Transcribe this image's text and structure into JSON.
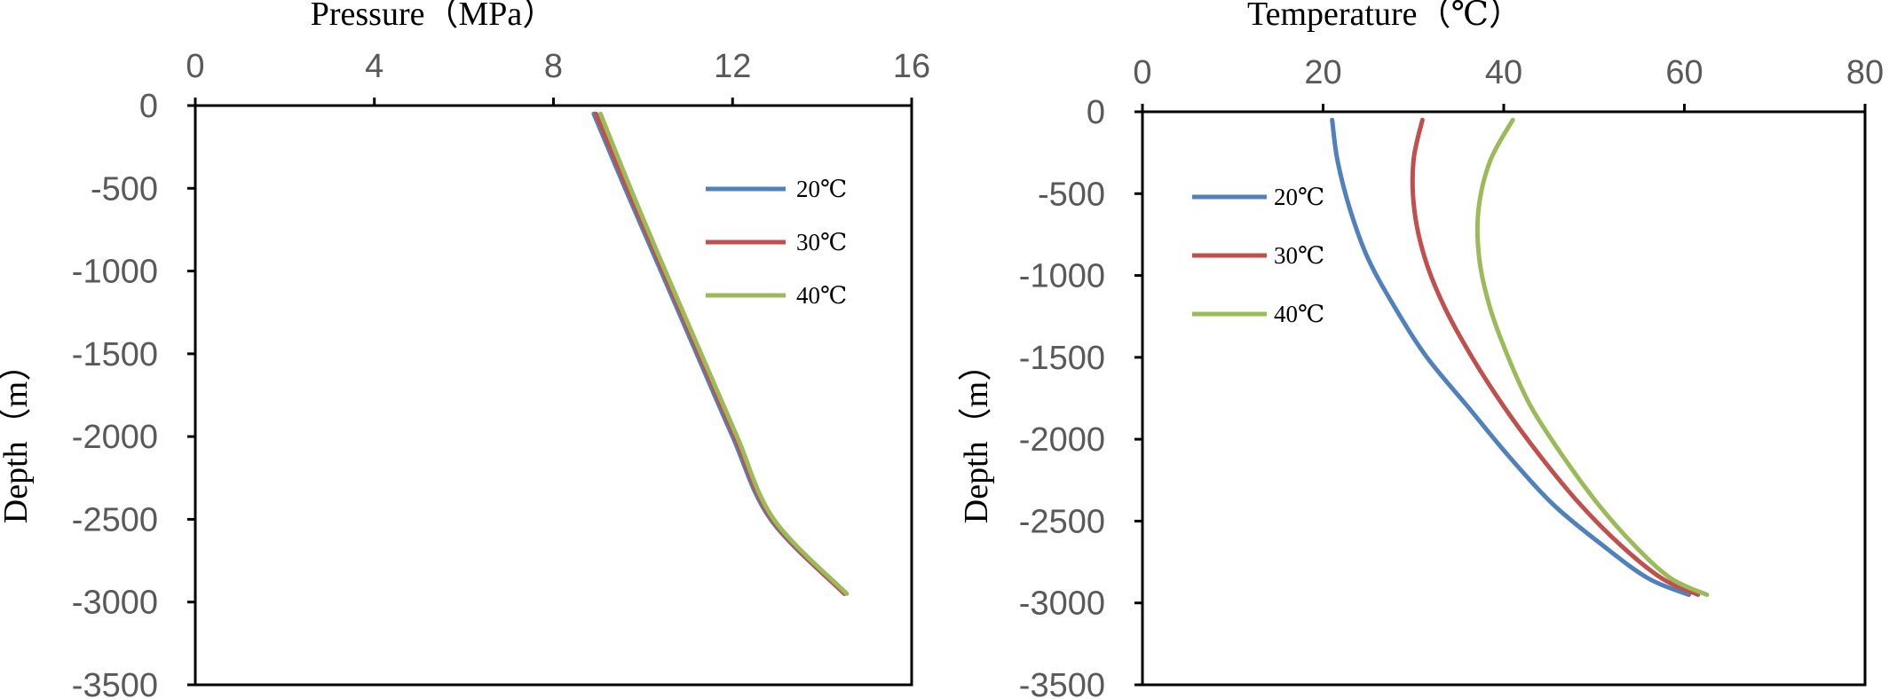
{
  "chart_data": [
    {
      "type": "line",
      "title": "",
      "xlabel": "Pressure（MPa）",
      "ylabel": "Depth（m）",
      "xlim": [
        0,
        16
      ],
      "ylim": [
        -3500,
        0
      ],
      "xticks": [
        "0",
        "4",
        "8",
        "12",
        "16"
      ],
      "yticks": [
        "0",
        "-500",
        "-1000",
        "-1500",
        "-2000",
        "-2500",
        "-3000",
        "-3500"
      ],
      "grid": false,
      "legend_position": "top-right",
      "series": [
        {
          "name": "20℃",
          "color": "#4f81bd",
          "points": [
            [
              8.9,
              -50
            ],
            [
              9.6,
              -500
            ],
            [
              10.4,
              -1000
            ],
            [
              11.2,
              -1500
            ],
            [
              12.0,
              -2000
            ],
            [
              12.85,
              -2500
            ],
            [
              14.5,
              -2950
            ]
          ]
        },
        {
          "name": "30℃",
          "color": "#c0504d",
          "points": [
            [
              8.95,
              -50
            ],
            [
              9.65,
              -500
            ],
            [
              10.45,
              -1000
            ],
            [
              11.25,
              -1500
            ],
            [
              12.05,
              -2000
            ],
            [
              12.88,
              -2500
            ],
            [
              14.5,
              -2950
            ]
          ]
        },
        {
          "name": "40℃",
          "color": "#9bbb59",
          "points": [
            [
              9.05,
              -50
            ],
            [
              9.72,
              -500
            ],
            [
              10.5,
              -1000
            ],
            [
              11.3,
              -1500
            ],
            [
              12.1,
              -2000
            ],
            [
              12.92,
              -2500
            ],
            [
              14.55,
              -2950
            ]
          ]
        }
      ]
    },
    {
      "type": "line",
      "title": "",
      "xlabel": "Temperature（℃）",
      "ylabel": "Depth（m）",
      "xlim": [
        0,
        80
      ],
      "ylim": [
        -3500,
        0
      ],
      "xticks": [
        "0",
        "20",
        "40",
        "60",
        "80"
      ],
      "yticks": [
        "0",
        "-500",
        "-1000",
        "-1500",
        "-2000",
        "-2500",
        "-3000",
        "-3500"
      ],
      "grid": false,
      "legend_position": "top-left",
      "series": [
        {
          "name": "20℃",
          "color": "#4f81bd",
          "points": [
            [
              21.0,
              -50
            ],
            [
              21.6,
              -300
            ],
            [
              23.0,
              -600
            ],
            [
              25.0,
              -900
            ],
            [
              28.0,
              -1200
            ],
            [
              31.5,
              -1500
            ],
            [
              36.0,
              -1800
            ],
            [
              40.5,
              -2100
            ],
            [
              45.5,
              -2400
            ],
            [
              51.0,
              -2650
            ],
            [
              56.0,
              -2850
            ],
            [
              60.5,
              -2950
            ]
          ]
        },
        {
          "name": "30℃",
          "color": "#c0504d",
          "points": [
            [
              31.0,
              -50
            ],
            [
              30.0,
              -300
            ],
            [
              30.1,
              -600
            ],
            [
              31.3,
              -900
            ],
            [
              33.5,
              -1200
            ],
            [
              36.5,
              -1500
            ],
            [
              40.0,
              -1800
            ],
            [
              44.0,
              -2100
            ],
            [
              48.5,
              -2400
            ],
            [
              53.0,
              -2650
            ],
            [
              57.5,
              -2850
            ],
            [
              61.5,
              -2950
            ]
          ]
        },
        {
          "name": "40℃",
          "color": "#9bbb59",
          "points": [
            [
              41.0,
              -50
            ],
            [
              38.5,
              -300
            ],
            [
              37.2,
              -600
            ],
            [
              37.3,
              -900
            ],
            [
              38.5,
              -1200
            ],
            [
              40.5,
              -1500
            ],
            [
              43.0,
              -1800
            ],
            [
              46.5,
              -2100
            ],
            [
              50.5,
              -2400
            ],
            [
              54.5,
              -2650
            ],
            [
              58.5,
              -2850
            ],
            [
              62.5,
              -2950
            ]
          ]
        }
      ]
    }
  ]
}
